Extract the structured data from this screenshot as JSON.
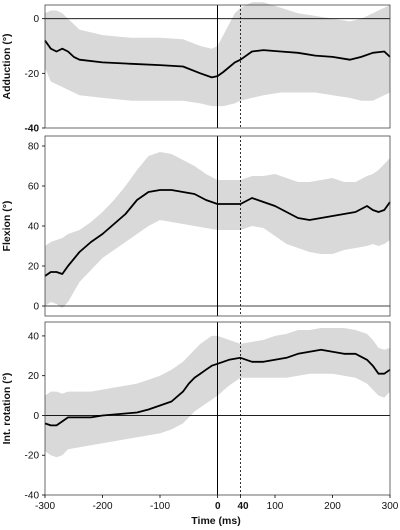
{
  "chart_data": {
    "type": "line",
    "xlabel": "Time (ms)",
    "xlim": [
      -300,
      300
    ],
    "xticks": [
      -300,
      -200,
      -100,
      0,
      40,
      100,
      200,
      300
    ],
    "xtick_labels": [
      "-300",
      "-200",
      "-100",
      "0",
      "40",
      "100",
      "200",
      "300"
    ],
    "vlines": [
      {
        "x": 0,
        "style": "solid"
      },
      {
        "x": 40,
        "style": "dotted"
      }
    ],
    "band_color": "#d9d9d9",
    "line_color": "#000000",
    "panels": [
      {
        "ylabel": "Adduction (°)",
        "ylim": [
          -40,
          5
        ],
        "yticks": [
          0,
          -20,
          -40
        ],
        "ytick_labels": [
          "0",
          "-20",
          "-40"
        ],
        "series": [
          {
            "x": [
              -300,
              -290,
              -280,
              -270,
              -260,
              -250,
              -240,
              -200,
              -150,
              -100,
              -60,
              -30,
              -10,
              0,
              10,
              30,
              40,
              60,
              80,
              110,
              140,
              170,
              200,
              230,
              250,
              270,
              290,
              300
            ],
            "mean": [
              -8,
              -11,
              -12,
              -11,
              -12,
              -14,
              -15,
              -16,
              -16.5,
              -17,
              -17.5,
              -20,
              -21.5,
              -21,
              -19.5,
              -16,
              -15,
              -12,
              -11.5,
              -12,
              -12.5,
              -13.5,
              -14,
              -15,
              -14,
              -12.5,
              -12,
              -14
            ],
            "upper": [
              2,
              3,
              3,
              2,
              0,
              -2,
              -4,
              -6,
              -7,
              -7,
              -7.5,
              -10,
              -11,
              -10,
              -6,
              2,
              4,
              6,
              6,
              4,
              2,
              1,
              0,
              -1,
              0,
              2,
              4,
              5
            ],
            "lower": [
              -18,
              -23,
              -24,
              -25,
              -26,
              -27,
              -28,
              -29,
              -30,
              -30,
              -30,
              -31,
              -32,
              -32,
              -32,
              -31,
              -30,
              -29,
              -28,
              -27,
              -27,
              -27,
              -28,
              -29,
              -30,
              -30,
              -28,
              -27
            ]
          }
        ]
      },
      {
        "ylabel": "Flexion (°)",
        "ylim": [
          -5,
          85
        ],
        "yticks": [
          0,
          20,
          40,
          60,
          80
        ],
        "ytick_labels": [
          "0",
          "20",
          "40",
          "60",
          "80"
        ],
        "series": [
          {
            "x": [
              -300,
              -290,
              -280,
              -270,
              -260,
              -240,
              -220,
              -200,
              -180,
              -160,
              -140,
              -120,
              -100,
              -80,
              -60,
              -40,
              -20,
              0,
              20,
              40,
              60,
              80,
              100,
              120,
              140,
              160,
              180,
              200,
              220,
              240,
              260,
              270,
              280,
              290,
              300
            ],
            "mean": [
              15,
              17,
              17,
              16,
              20,
              27,
              32,
              36,
              41,
              46,
              53,
              57,
              58,
              58,
              57,
              56,
              53,
              51,
              51,
              51,
              54,
              52,
              50,
              47,
              44,
              43,
              44,
              45,
              46,
              47,
              50,
              48,
              47,
              48,
              52
            ],
            "upper": [
              30,
              32,
              33,
              34,
              36,
              38,
              42,
              47,
              53,
              60,
              68,
              75,
              77,
              76,
              73,
              70,
              66,
              63,
              63,
              63,
              65,
              65,
              66,
              64,
              62,
              62,
              63,
              64,
              62,
              62,
              65,
              66,
              68,
              71,
              74
            ],
            "lower": [
              0,
              2,
              1,
              -1,
              2,
              12,
              18,
              24,
              28,
              32,
              36,
              40,
              43,
              42,
              41,
              40,
              39,
              38,
              38,
              38,
              40,
              39,
              35,
              31,
              29,
              27,
              26,
              26,
              28,
              29,
              30,
              31,
              30,
              31,
              33
            ]
          }
        ]
      },
      {
        "ylabel": "Int. rotation (°)",
        "ylim": [
          -40,
          47
        ],
        "yticks": [
          40,
          20,
          0,
          -20,
          -40
        ],
        "ytick_labels": [
          "40",
          "20",
          "0",
          "-20",
          "-40"
        ],
        "series": [
          {
            "x": [
              -300,
              -290,
              -280,
              -270,
              -260,
              -240,
              -220,
              -200,
              -180,
              -160,
              -140,
              -120,
              -100,
              -80,
              -60,
              -50,
              -40,
              -30,
              -20,
              -10,
              0,
              20,
              40,
              60,
              80,
              100,
              120,
              140,
              160,
              180,
              200,
              220,
              240,
              260,
              270,
              280,
              290,
              300
            ],
            "mean": [
              -4,
              -5,
              -5,
              -3,
              -1,
              -1,
              -1,
              0,
              0.5,
              1,
              1.5,
              3,
              5,
              7,
              12,
              16,
              19,
              21,
              23,
              25,
              26,
              28,
              29,
              27,
              27,
              28,
              29,
              31,
              32,
              33,
              32,
              31,
              31,
              28,
              25,
              21,
              21,
              23
            ],
            "upper": [
              10,
              12,
              12,
              11,
              12,
              12,
              12,
              13,
              14,
              15,
              16,
              18,
              20,
              23,
              27,
              30,
              33,
              36,
              38,
              40,
              40,
              38,
              36,
              37,
              38,
              40,
              41,
              43,
              43,
              44,
              44,
              44,
              43,
              41,
              38,
              34,
              33,
              34
            ],
            "lower": [
              -18,
              -20,
              -21,
              -20,
              -17,
              -16,
              -15,
              -14,
              -13,
              -12,
              -11,
              -10,
              -9,
              -7,
              -4,
              -1,
              2,
              4,
              6,
              8,
              10,
              15,
              19,
              19,
              19,
              19,
              19,
              20,
              21,
              21,
              21,
              20,
              19,
              16,
              13,
              10,
              9,
              12
            ]
          }
        ]
      }
    ]
  }
}
